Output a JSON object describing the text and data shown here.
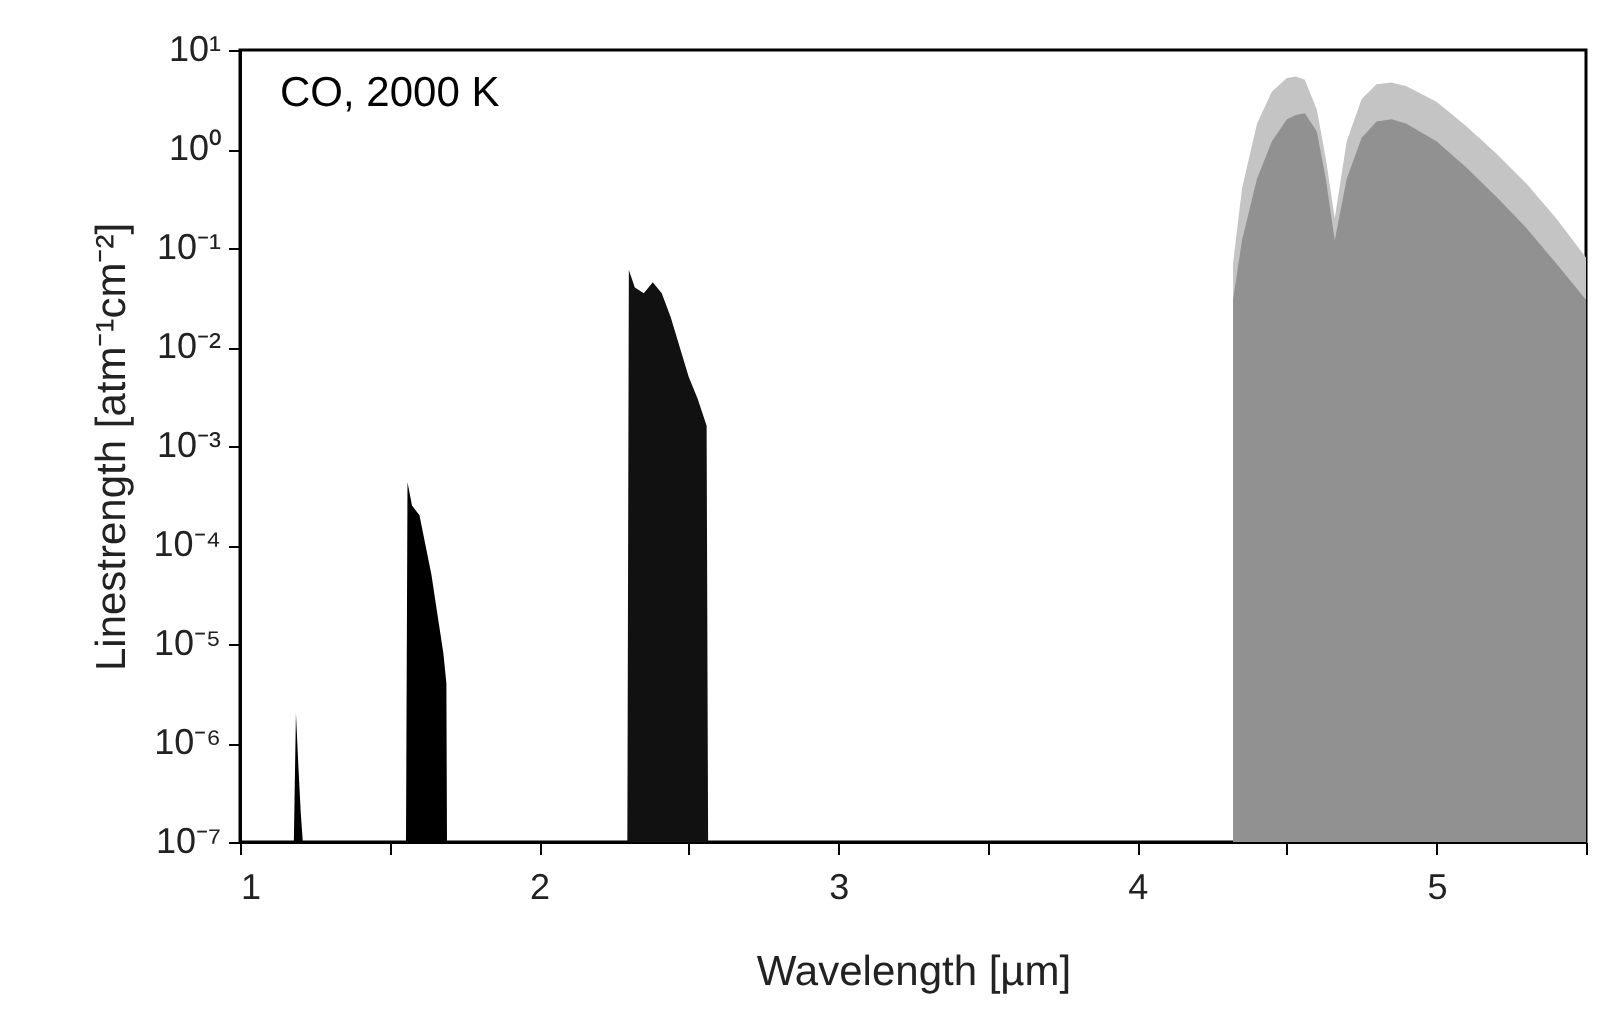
{
  "chart_data": {
    "type": "area",
    "xlabel": "Wavelength [µm]",
    "ylabel": "Linestrength [atm⁻¹cm⁻²]",
    "log": true,
    "annotations": [
      "CO, 2000 K"
    ],
    "xlim": [
      1,
      5.5
    ],
    "ylim": [
      1e-07,
      10
    ],
    "xticks": [
      1,
      {
        "value": 1.5,
        "label": null
      },
      2,
      {
        "value": 2.5,
        "label": null
      },
      3,
      {
        "value": 3.5,
        "label": null
      },
      4,
      {
        "value": 4.5,
        "label": null
      },
      5,
      {
        "value": 5.5,
        "label": null
      }
    ],
    "yticks": [
      {
        "value": 1e-07,
        "label": "10⁻⁷"
      },
      {
        "value": 1e-06,
        "label": "10⁻⁶"
      },
      {
        "value": 1e-05,
        "label": "10⁻⁵"
      },
      {
        "value": 0.0001,
        "label": "10⁻⁴"
      },
      {
        "value": 0.001,
        "label": "10⁻³"
      },
      {
        "value": 0.01,
        "label": "10⁻²"
      },
      {
        "value": 0.1,
        "label": "10⁻¹"
      },
      {
        "value": 1,
        "label": "10⁰"
      },
      {
        "value": 10,
        "label": "10¹"
      }
    ],
    "series": [
      {
        "color": "#000000",
        "x": [
          1.18,
          1.187,
          1.195,
          1.203,
          1.21
        ],
        "values": [
          1e-07,
          2e-06,
          6e-07,
          2e-07,
          1e-07
        ]
      },
      {
        "color": "#000000",
        "x": [
          1.555,
          1.56,
          1.575,
          1.6,
          1.62,
          1.64,
          1.66,
          1.68,
          1.69,
          1.692
        ],
        "values": [
          1e-07,
          0.00043,
          0.00025,
          0.0002,
          0.0001,
          5e-05,
          2e-05,
          8e-06,
          4e-06,
          1e-07
        ]
      },
      {
        "color": "#111111",
        "x": [
          2.295,
          2.3,
          2.32,
          2.35,
          2.38,
          2.41,
          2.44,
          2.47,
          2.5,
          2.53,
          2.56,
          2.565
        ],
        "values": [
          1e-07,
          0.06,
          0.04,
          0.035,
          0.045,
          0.035,
          0.02,
          0.01,
          0.005,
          0.003,
          0.0016,
          1e-07
        ]
      },
      {
        "color": "#c4c4c4",
        "x": [
          4.32,
          4.35,
          4.4,
          4.45,
          4.5,
          4.53,
          4.56,
          4.6,
          4.63,
          4.66,
          4.7,
          4.75,
          4.8,
          4.85,
          4.9,
          5.0,
          5.1,
          5.2,
          5.3,
          5.4,
          5.5
        ],
        "values": [
          0.07,
          0.4,
          1.8,
          3.8,
          5.2,
          5.4,
          5,
          2.5,
          0.8,
          0.2,
          1.2,
          3.2,
          4.5,
          4.7,
          4.3,
          3,
          1.7,
          0.9,
          0.45,
          0.2,
          0.08
        ]
      },
      {
        "color": "#858585",
        "x": [
          4.32,
          4.35,
          4.4,
          4.45,
          4.5,
          4.53,
          4.56,
          4.6,
          4.63,
          4.66,
          4.7,
          4.75,
          4.8,
          4.85,
          4.9,
          5.0,
          5.1,
          5.2,
          5.3,
          5.4,
          5.5
        ],
        "values": [
          0.03,
          0.12,
          0.5,
          1.2,
          2,
          2.2,
          2.3,
          1.5,
          0.5,
          0.12,
          0.5,
          1.3,
          1.9,
          2,
          1.8,
          1.2,
          0.65,
          0.33,
          0.16,
          0.07,
          0.03
        ]
      }
    ]
  }
}
